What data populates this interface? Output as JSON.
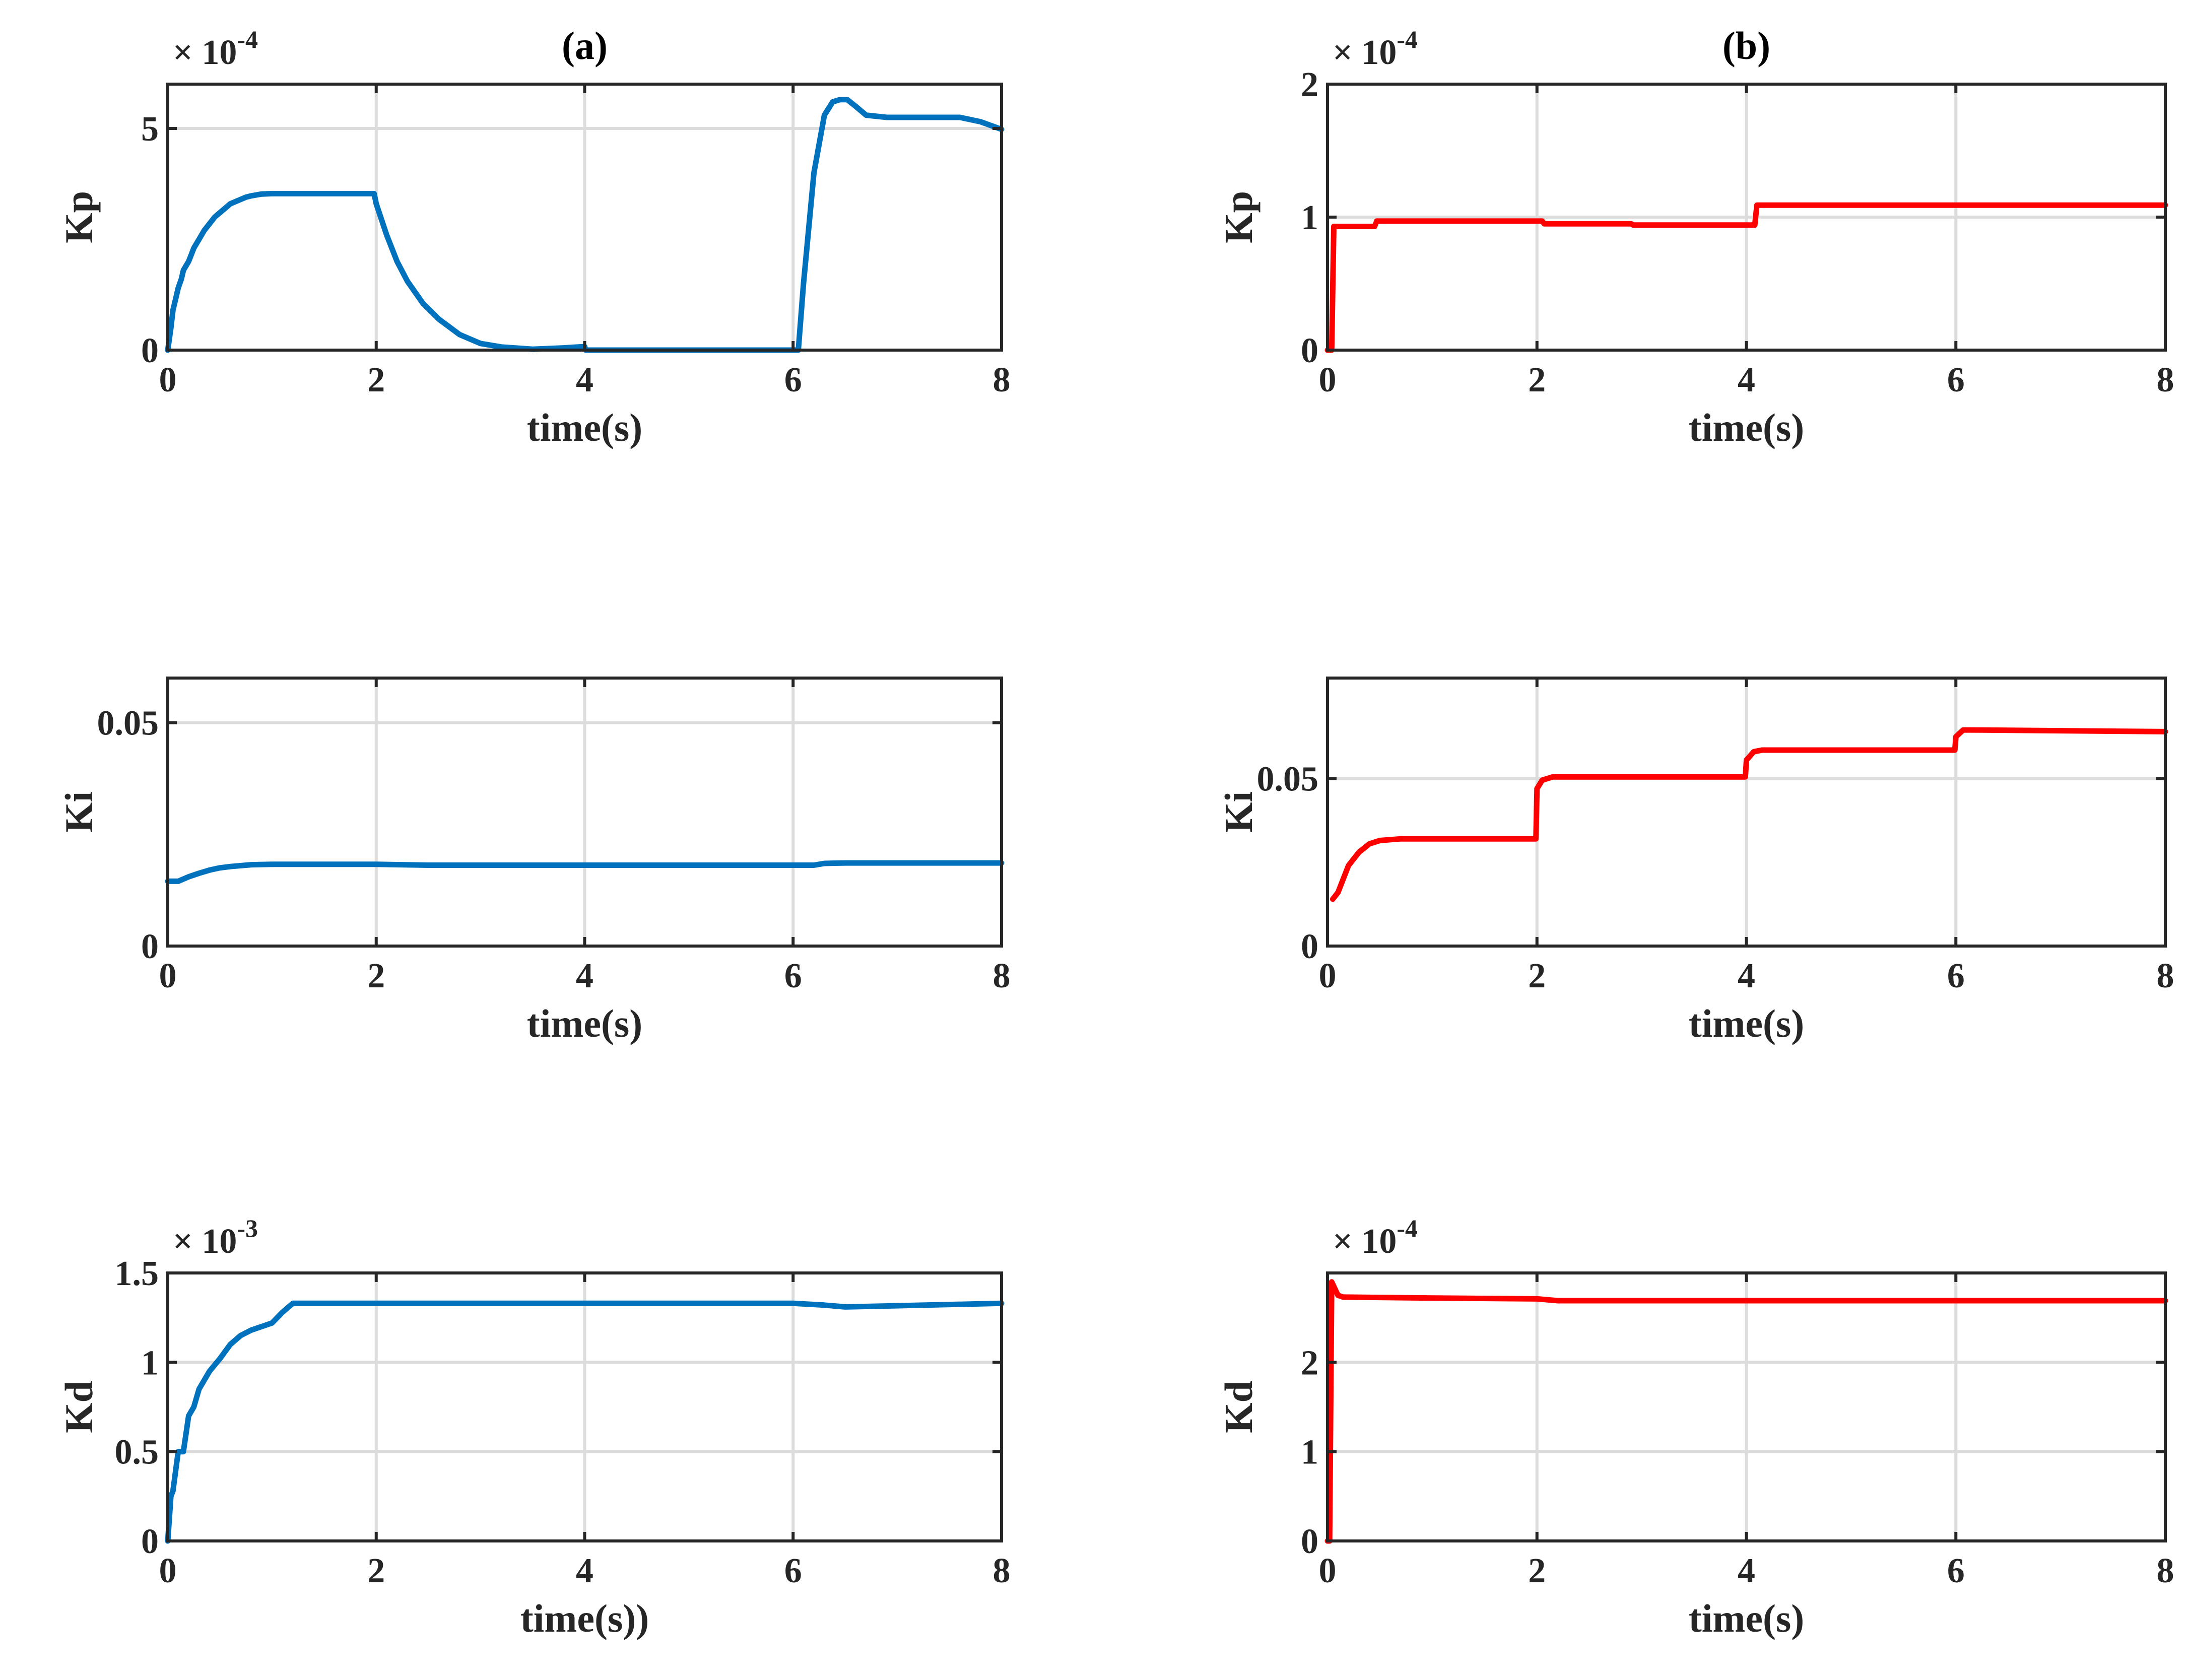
{
  "colors": {
    "series_a": "#0072BD",
    "series_b": "#FF0000",
    "axis": "#262626",
    "grid": "#DCDCDC"
  },
  "chart_data": [
    {
      "id": "a-kp",
      "type": "line",
      "title": "(a)",
      "xlabel": "time(s)",
      "ylabel": "Kp",
      "exponent_base": "× 10",
      "exponent_power": "-4",
      "xlim": [
        0,
        8
      ],
      "ylim": [
        0,
        6
      ],
      "xticks": [
        0,
        2,
        4,
        6,
        8
      ],
      "xtick_labels": [
        "0",
        "2",
        "4",
        "6",
        "8"
      ],
      "yticks": [
        0,
        5
      ],
      "ytick_labels": [
        "0",
        "5"
      ],
      "series": [
        {
          "name": "Kp (a)",
          "color": "#0072BD",
          "x": [
            0,
            0.03,
            0.05,
            0.08,
            0.1,
            0.13,
            0.15,
            0.2,
            0.25,
            0.3,
            0.35,
            0.4,
            0.45,
            0.5,
            0.55,
            0.6,
            0.65,
            0.7,
            0.75,
            0.8,
            0.85,
            0.9,
            1.0,
            1.5,
            1.98,
            2.0,
            2.1,
            2.2,
            2.3,
            2.45,
            2.6,
            2.8,
            3.0,
            3.2,
            3.5,
            3.8,
            4.0,
            4.01,
            5.0,
            6.05,
            6.1,
            6.2,
            6.3,
            6.38,
            6.45,
            6.52,
            6.6,
            6.7,
            6.9,
            7.2,
            7.6,
            7.8,
            8.0
          ],
          "y": [
            0,
            0.5,
            0.9,
            1.2,
            1.4,
            1.6,
            1.8,
            2.0,
            2.3,
            2.5,
            2.7,
            2.85,
            3.0,
            3.1,
            3.2,
            3.3,
            3.35,
            3.4,
            3.45,
            3.48,
            3.5,
            3.52,
            3.53,
            3.53,
            3.53,
            3.3,
            2.6,
            2.0,
            1.55,
            1.05,
            0.7,
            0.35,
            0.15,
            0.07,
            0.02,
            0.05,
            0.08,
            0,
            0,
            0,
            1.5,
            4.0,
            5.3,
            5.6,
            5.65,
            5.65,
            5.5,
            5.3,
            5.25,
            5.25,
            5.25,
            5.15,
            4.98
          ]
        }
      ]
    },
    {
      "id": "b-kp",
      "type": "line",
      "title": "(b)",
      "xlabel": "time(s)",
      "ylabel": "Kp",
      "exponent_base": "× 10",
      "exponent_power": "-4",
      "xlim": [
        0,
        8
      ],
      "ylim": [
        0,
        2
      ],
      "xticks": [
        0,
        2,
        4,
        6,
        8
      ],
      "xtick_labels": [
        "0",
        "2",
        "4",
        "6",
        "8"
      ],
      "yticks": [
        0,
        1,
        2
      ],
      "ytick_labels": [
        "0",
        "1",
        "2"
      ],
      "series": [
        {
          "name": "Kp (b)",
          "color": "#FF0000",
          "x": [
            0,
            0.04,
            0.06,
            0.45,
            0.47,
            2.05,
            2.07,
            2.9,
            2.92,
            4.08,
            4.1,
            6.0,
            8.0
          ],
          "y": [
            0,
            0,
            0.93,
            0.93,
            0.97,
            0.97,
            0.95,
            0.95,
            0.94,
            0.94,
            1.09,
            1.09,
            1.09
          ]
        }
      ]
    },
    {
      "id": "a-ki",
      "type": "line",
      "title": "",
      "xlabel": "time(s)",
      "ylabel": "Ki",
      "exponent_base": "",
      "exponent_power": "",
      "xlim": [
        0,
        8
      ],
      "ylim": [
        0,
        0.06
      ],
      "xticks": [
        0,
        2,
        4,
        6,
        8
      ],
      "xtick_labels": [
        "0",
        "2",
        "4",
        "6",
        "8"
      ],
      "yticks": [
        0,
        0.05
      ],
      "ytick_labels": [
        "0",
        "0.05"
      ],
      "series": [
        {
          "name": "Ki (a)",
          "color": "#0072BD",
          "x": [
            0,
            0.1,
            0.2,
            0.3,
            0.4,
            0.5,
            0.6,
            0.8,
            1.0,
            2.0,
            2.5,
            4.0,
            6.2,
            6.3,
            6.5,
            8.0
          ],
          "y": [
            0.0145,
            0.0145,
            0.0155,
            0.0163,
            0.017,
            0.0175,
            0.0178,
            0.0182,
            0.0183,
            0.0183,
            0.0181,
            0.0181,
            0.0181,
            0.0185,
            0.0186,
            0.0186
          ]
        }
      ]
    },
    {
      "id": "b-ki",
      "type": "line",
      "title": "",
      "xlabel": "time(s)",
      "ylabel": "Ki",
      "exponent_base": "",
      "exponent_power": "",
      "xlim": [
        0,
        8
      ],
      "ylim": [
        0,
        0.08
      ],
      "xticks": [
        0,
        2,
        4,
        6,
        8
      ],
      "xtick_labels": [
        "0",
        "2",
        "4",
        "6",
        "8"
      ],
      "yticks": [
        0,
        0.05
      ],
      "ytick_labels": [
        "0",
        "0.05"
      ],
      "series": [
        {
          "name": "Ki (b)",
          "color": "#FF0000",
          "x": [
            0.05,
            0.1,
            0.2,
            0.3,
            0.4,
            0.5,
            0.7,
            1.0,
            1.99,
            2.0,
            2.05,
            2.15,
            3.99,
            4.0,
            4.07,
            4.15,
            5.99,
            6.0,
            6.07,
            6.15,
            8.0
          ],
          "y": [
            0.014,
            0.016,
            0.024,
            0.028,
            0.0305,
            0.0315,
            0.032,
            0.032,
            0.032,
            0.047,
            0.0495,
            0.0505,
            0.0505,
            0.0555,
            0.058,
            0.0585,
            0.0585,
            0.0625,
            0.0645,
            0.0645,
            0.064
          ]
        }
      ]
    },
    {
      "id": "a-kd",
      "type": "line",
      "title": "",
      "xlabel": "time(s))",
      "ylabel": "Kd",
      "exponent_base": "× 10",
      "exponent_power": "-3",
      "xlim": [
        0,
        8
      ],
      "ylim": [
        0,
        1.5
      ],
      "xticks": [
        0,
        2,
        4,
        6,
        8
      ],
      "xtick_labels": [
        "0",
        "2",
        "4",
        "6",
        "8"
      ],
      "yticks": [
        0,
        0.5,
        1,
        1.5
      ],
      "ytick_labels": [
        "0",
        "0.5",
        "1",
        "1.5"
      ],
      "series": [
        {
          "name": "Kd (a)",
          "color": "#0072BD",
          "x": [
            0,
            0.03,
            0.05,
            0.1,
            0.15,
            0.2,
            0.25,
            0.3,
            0.4,
            0.5,
            0.6,
            0.7,
            0.8,
            0.9,
            1.0,
            1.1,
            1.2,
            2.0,
            4.0,
            6.0,
            6.3,
            6.5,
            8.0
          ],
          "y": [
            0,
            0.25,
            0.28,
            0.5,
            0.5,
            0.7,
            0.75,
            0.85,
            0.95,
            1.02,
            1.1,
            1.15,
            1.18,
            1.2,
            1.22,
            1.28,
            1.33,
            1.33,
            1.33,
            1.33,
            1.32,
            1.31,
            1.33
          ]
        }
      ]
    },
    {
      "id": "b-kd",
      "type": "line",
      "title": "",
      "xlabel": "time(s)",
      "ylabel": "Kd",
      "exponent_base": "× 10",
      "exponent_power": "-4",
      "xlim": [
        0,
        8
      ],
      "ylim": [
        0,
        3
      ],
      "xticks": [
        0,
        2,
        4,
        6,
        8
      ],
      "xtick_labels": [
        "0",
        "2",
        "4",
        "6",
        "8"
      ],
      "yticks": [
        0,
        1,
        2
      ],
      "ytick_labels": [
        "0",
        "1",
        "2"
      ],
      "series": [
        {
          "name": "Kd (b)",
          "color": "#FF0000",
          "x": [
            0,
            0.02,
            0.04,
            0.06,
            0.1,
            0.15,
            1.0,
            2.0,
            2.2,
            4.0,
            8.0
          ],
          "y": [
            0,
            0,
            2.9,
            2.85,
            2.75,
            2.73,
            2.72,
            2.71,
            2.69,
            2.69,
            2.69
          ]
        }
      ]
    }
  ]
}
